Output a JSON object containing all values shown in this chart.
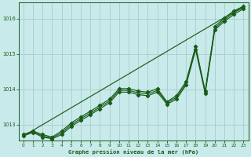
{
  "bg_color": "#c8eaea",
  "plot_bg_color": "#c8eaea",
  "grid_color": "#aacccc",
  "line_color": "#1a5c1a",
  "marker_color": "#1a5c1a",
  "xlabel": "Graphe pression niveau de la mer (hPa)",
  "xlabel_color": "#1a5c1a",
  "tick_color": "#1a5c1a",
  "ylim": [
    1012.55,
    1016.45
  ],
  "xlim": [
    -0.5,
    23.5
  ],
  "yticks": [
    1013,
    1014,
    1015,
    1016
  ],
  "xticks": [
    0,
    1,
    2,
    3,
    4,
    5,
    6,
    7,
    8,
    9,
    10,
    11,
    12,
    13,
    14,
    15,
    16,
    17,
    18,
    19,
    20,
    21,
    22,
    23
  ],
  "series_main_x": [
    0,
    1,
    2,
    3,
    4,
    5,
    6,
    7,
    8,
    9,
    10,
    11,
    12,
    13,
    14,
    15,
    16,
    17,
    18,
    19,
    20,
    21,
    22,
    23
  ],
  "series_main_y": [
    1012.72,
    1012.82,
    1012.72,
    1012.65,
    1012.82,
    1013.05,
    1013.22,
    1013.38,
    1013.55,
    1013.72,
    1014.02,
    1014.02,
    1013.95,
    1013.92,
    1014.02,
    1013.65,
    1013.82,
    1014.22,
    1015.22,
    1013.95,
    1015.78,
    1016.02,
    1016.22,
    1016.35
  ],
  "series_smooth_x": [
    0,
    1,
    2,
    3,
    4,
    5,
    6,
    7,
    8,
    9,
    10,
    11,
    12,
    13,
    14,
    15,
    16,
    17,
    18,
    19,
    20,
    21,
    22,
    23
  ],
  "series_smooth_y": [
    1012.68,
    1012.78,
    1012.65,
    1012.6,
    1012.72,
    1012.95,
    1013.12,
    1013.28,
    1013.45,
    1013.62,
    1013.92,
    1013.92,
    1013.85,
    1013.82,
    1013.92,
    1013.58,
    1013.72,
    1014.12,
    1015.12,
    1013.88,
    1015.68,
    1015.92,
    1016.12,
    1016.28
  ],
  "series_trend_x": [
    0,
    23
  ],
  "series_trend_y": [
    1012.68,
    1016.35
  ],
  "series_extra_x": [
    0,
    1,
    2,
    3,
    4,
    5,
    6,
    7,
    8,
    9,
    10,
    11,
    12,
    13,
    14,
    15,
    16,
    17,
    18,
    19,
    20,
    21,
    22,
    23
  ],
  "series_extra_y": [
    1012.7,
    1012.8,
    1012.68,
    1012.62,
    1012.77,
    1013.0,
    1013.17,
    1013.33,
    1013.5,
    1013.67,
    1013.97,
    1013.97,
    1013.9,
    1013.87,
    1013.97,
    1013.62,
    1013.77,
    1014.17,
    1015.17,
    1013.92,
    1015.73,
    1015.97,
    1016.17,
    1016.32
  ]
}
